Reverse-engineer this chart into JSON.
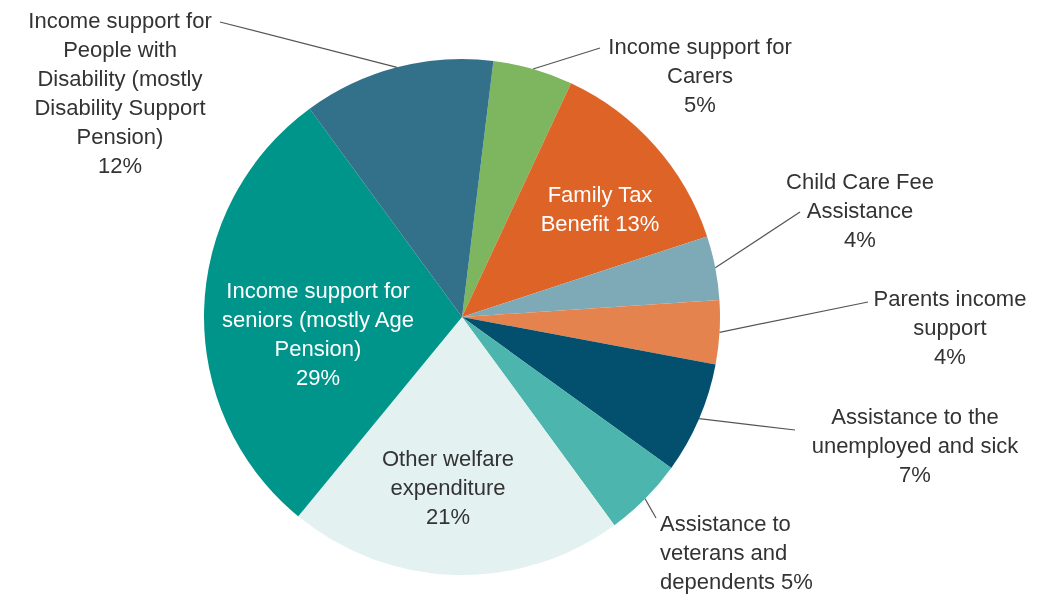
{
  "chart_data": {
    "type": "pie",
    "categories": [
      "Income support for Carers",
      "Family Tax Benefit",
      "Child Care Fee Assistance",
      "Parents income support",
      "Assistance to the unemployed and sick",
      "Assistance to veterans and dependents",
      "Other welfare expenditure",
      "Income support for seniors (mostly Age Pension)",
      "Income support for People with Disability (mostly Disability Support Pension)"
    ],
    "values": [
      5,
      13,
      4,
      4,
      7,
      5,
      21,
      29,
      12
    ],
    "value_labels": [
      "5%",
      "13%",
      "4%",
      "4%",
      "7%",
      "5%",
      "21%",
      "29%",
      "12%"
    ],
    "colors": [
      "#7db65f",
      "#dd6327",
      "#7eaab8",
      "#e5834f",
      "#03506e",
      "#4cb5ae",
      "#e3f1f0",
      "#00958a",
      "#33718a"
    ],
    "legend": false
  }
}
